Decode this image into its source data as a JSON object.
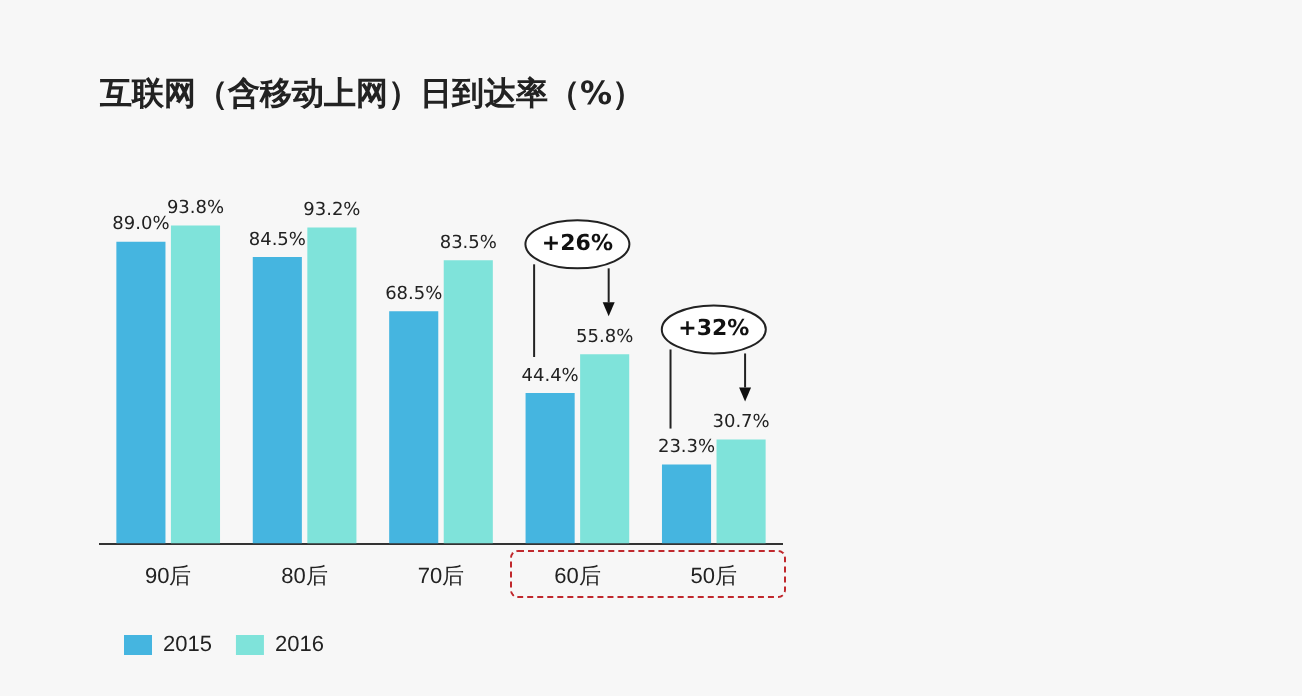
{
  "chart_data": {
    "type": "bar",
    "title": "互联网（含移动上网）日到达率（%）",
    "categories": [
      "90后",
      "80后",
      "70后",
      "60后",
      "50后"
    ],
    "series": [
      {
        "name": "2015",
        "color": "#45b5e0",
        "values": [
          89.0,
          84.5,
          68.5,
          44.4,
          23.3
        ],
        "value_labels": [
          "89.0%",
          "84.5%",
          "68.5%",
          "44.4%",
          "23.3%"
        ]
      },
      {
        "name": "2016",
        "color": "#7fe3da",
        "values": [
          93.8,
          93.2,
          83.5,
          55.8,
          30.7
        ],
        "value_labels": [
          "93.8%",
          "93.2%",
          "83.5%",
          "55.8%",
          "30.7%"
        ]
      }
    ],
    "annotations": [
      "+26%",
      "+32%"
    ],
    "legend": "bottom left",
    "grid": false
  }
}
